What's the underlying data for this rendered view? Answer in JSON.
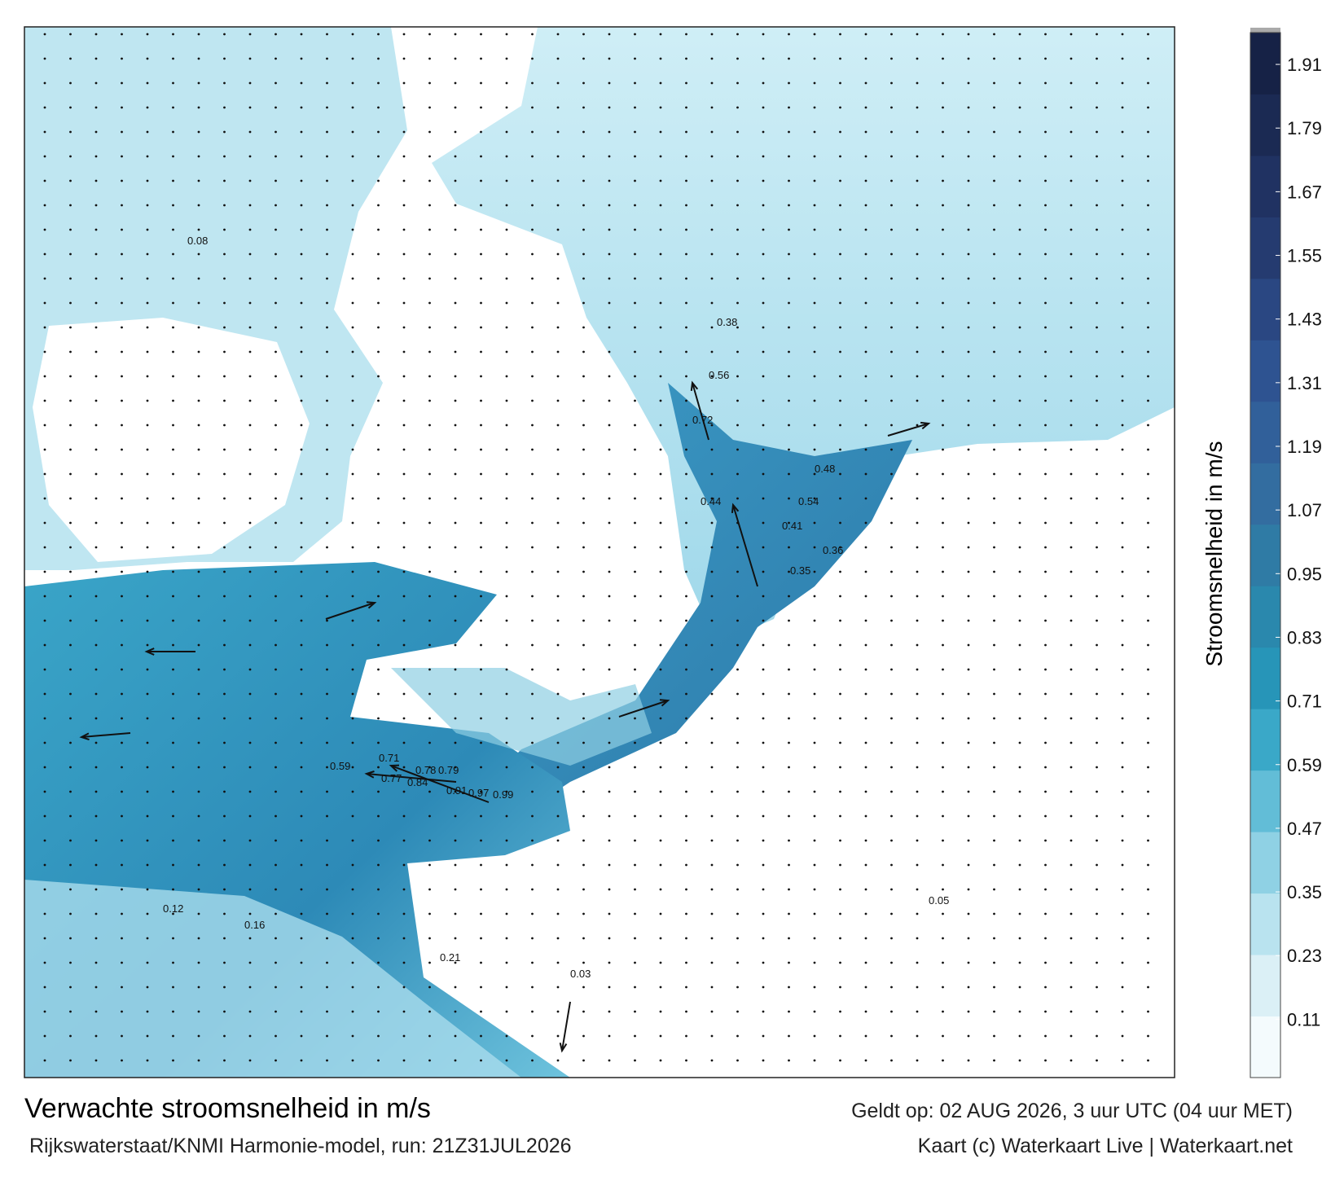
{
  "map": {
    "labels": [
      "0.99",
      "0.97",
      "0.91",
      "0.78",
      "0.79",
      "0.71",
      "0.59",
      "0.77",
      "0.84",
      "0.56",
      "0.72",
      "0.48",
      "0.54",
      "0.41",
      "0.36",
      "0.44",
      "0.35",
      "0.38",
      "0.21",
      "0.16",
      "0.12",
      "0.08",
      "0.05",
      "0.03"
    ]
  },
  "colorbar": {
    "label": "Stroomsnelheid in m/s",
    "clim": [
      0,
      1.97
    ],
    "ticks": [
      0.11,
      0.23,
      0.35,
      0.47,
      0.59,
      0.71,
      0.83,
      0.95,
      1.07,
      1.19,
      1.31,
      1.43,
      1.55,
      1.67,
      1.79,
      1.91
    ],
    "colors": [
      "#f4fbfd",
      "#dbf0f6",
      "#b9e3ef",
      "#8fd1e4",
      "#62bdd7",
      "#3aa8c8",
      "#2795b8",
      "#2a88ad",
      "#2f7ba5",
      "#336da0",
      "#31609a",
      "#2e5391",
      "#2a4782",
      "#253b70",
      "#203262",
      "#1b2a53",
      "#162246"
    ]
  },
  "footer": {
    "title": "Verwachte stroomsnelheid in m/s",
    "subtitle": "Rijkswaterstaat/KNMI Harmonie-model, run: 21Z31JUL2026",
    "valid": "Geldt op: 02 AUG 2026, 3 uur UTC (04 uur MET)",
    "credit": "Kaart (c) Waterkaart Live | Waterkaart.net"
  }
}
